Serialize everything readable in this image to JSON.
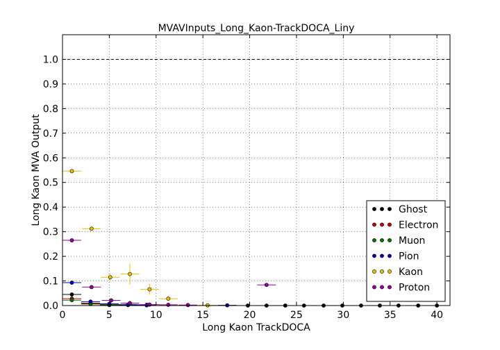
{
  "chart_data": {
    "type": "scatter",
    "title": "MVAVInputs_Long_Kaon-TrackDOCA_Liny",
    "xlabel": "Long Kaon TrackDOCA",
    "ylabel": "Long Kaon MVA Output",
    "xlim": [
      0,
      41.4
    ],
    "ylim": [
      0,
      1.1
    ],
    "xticks": [
      0,
      5,
      10,
      15,
      20,
      25,
      30,
      35,
      40
    ],
    "yticks": [
      0.0,
      0.1,
      0.2,
      0.3,
      0.4,
      0.5,
      0.6,
      0.7,
      0.8,
      0.9,
      1.0
    ],
    "xtick_labels": [
      "0",
      "5",
      "10",
      "15",
      "20",
      "25",
      "30",
      "35",
      "40"
    ],
    "ytick_labels": [
      "0.0",
      "0.1",
      "0.2",
      "0.3",
      "0.4",
      "0.5",
      "0.6",
      "0.7",
      "0.8",
      "0.9",
      "1.0"
    ],
    "grid": true,
    "legend_position": "lower-right",
    "reference_line": {
      "y": 1.0,
      "style": "dashed"
    },
    "bin_half_width": 1.0,
    "series": [
      {
        "name": "Ghost",
        "color": "#000000",
        "points": [
          {
            "x": 1.0,
            "y": 0.045,
            "yerr": 0.006
          },
          {
            "x": 3.0,
            "y": 0.008,
            "yerr": 0.003
          },
          {
            "x": 5.0,
            "y": 0.002,
            "yerr": 0.001
          },
          {
            "x": 7.0,
            "y": 0.002,
            "yerr": 0.001
          },
          {
            "x": 9.0,
            "y": 0.001,
            "yerr": 0.001
          },
          {
            "x": 19.8,
            "y": 0.0,
            "yerr": 0.0
          },
          {
            "x": 21.8,
            "y": 0.0,
            "yerr": 0.0
          },
          {
            "x": 23.8,
            "y": 0.0,
            "yerr": 0.0
          },
          {
            "x": 25.8,
            "y": 0.0,
            "yerr": 0.0
          },
          {
            "x": 27.9,
            "y": 0.0,
            "yerr": 0.0
          },
          {
            "x": 29.9,
            "y": 0.0,
            "yerr": 0.0
          },
          {
            "x": 31.9,
            "y": 0.0,
            "yerr": 0.0
          },
          {
            "x": 33.9,
            "y": 0.0,
            "yerr": 0.0
          },
          {
            "x": 35.9,
            "y": 0.0,
            "yerr": 0.0
          },
          {
            "x": 38.0,
            "y": 0.0,
            "yerr": 0.0
          },
          {
            "x": 40.0,
            "y": 0.0,
            "yerr": 0.0
          }
        ]
      },
      {
        "name": "Electron",
        "color": "#cc0000",
        "points": [
          {
            "x": 1.0,
            "y": 0.028,
            "yerr": 0.004
          },
          {
            "x": 3.0,
            "y": 0.01,
            "yerr": 0.003
          },
          {
            "x": 5.0,
            "y": 0.004,
            "yerr": 0.002
          }
        ]
      },
      {
        "name": "Muon",
        "color": "#007700",
        "points": [
          {
            "x": 1.0,
            "y": 0.022,
            "yerr": 0.004
          },
          {
            "x": 3.0,
            "y": 0.006,
            "yerr": 0.002
          },
          {
            "x": 5.0,
            "y": 0.003,
            "yerr": 0.002
          }
        ]
      },
      {
        "name": "Pion",
        "color": "#0000bb",
        "points": [
          {
            "x": 1.0,
            "y": 0.093,
            "yerr": 0.004
          },
          {
            "x": 3.0,
            "y": 0.016,
            "yerr": 0.003
          },
          {
            "x": 5.0,
            "y": 0.007,
            "yerr": 0.002
          },
          {
            "x": 7.0,
            "y": 0.004,
            "yerr": 0.002
          },
          {
            "x": 9.0,
            "y": 0.003,
            "yerr": 0.002
          },
          {
            "x": 17.6,
            "y": 0.001,
            "yerr": 0.001
          }
        ]
      },
      {
        "name": "Kaon",
        "color": "#e8c000",
        "points": [
          {
            "x": 1.0,
            "y": 0.546,
            "yerr": 0.006
          },
          {
            "x": 3.1,
            "y": 0.312,
            "yerr": 0.006
          },
          {
            "x": 5.1,
            "y": 0.115,
            "yerr": 0.012
          },
          {
            "x": 7.2,
            "y": 0.128,
            "yerr": 0.042
          },
          {
            "x": 9.3,
            "y": 0.066,
            "yerr": 0.022
          },
          {
            "x": 11.3,
            "y": 0.028,
            "yerr": 0.01
          },
          {
            "x": 15.5,
            "y": 0.001,
            "yerr": 0.001
          }
        ]
      },
      {
        "name": "Proton",
        "color": "#990099",
        "points": [
          {
            "x": 1.0,
            "y": 0.265,
            "yerr": 0.006
          },
          {
            "x": 3.1,
            "y": 0.075,
            "yerr": 0.005
          },
          {
            "x": 5.2,
            "y": 0.021,
            "yerr": 0.004
          },
          {
            "x": 7.2,
            "y": 0.01,
            "yerr": 0.004
          },
          {
            "x": 9.3,
            "y": 0.004,
            "yerr": 0.002
          },
          {
            "x": 11.3,
            "y": 0.003,
            "yerr": 0.002
          },
          {
            "x": 13.4,
            "y": 0.002,
            "yerr": 0.002
          },
          {
            "x": 21.8,
            "y": 0.084,
            "yerr": 0.004
          }
        ]
      }
    ]
  }
}
